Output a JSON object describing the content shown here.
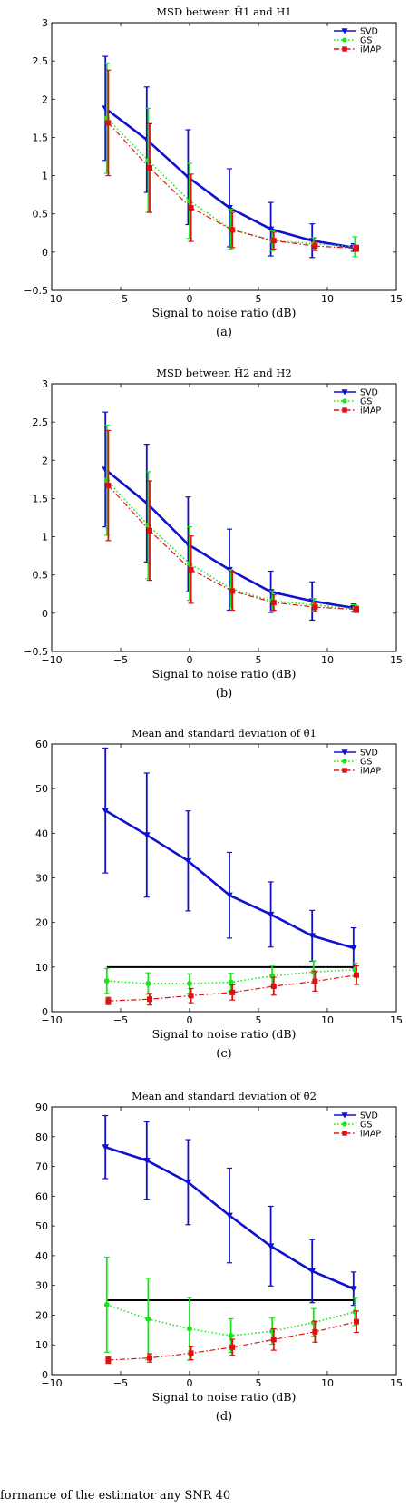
{
  "chart_data": [
    {
      "type": "line",
      "title": "MSD between Ĥ1 and H1",
      "xlabel": "Signal to noise ratio (dB)",
      "ylabel": "",
      "caption": "(a)",
      "xlim": [
        -10,
        15
      ],
      "ylim": [
        -0.5,
        3
      ],
      "xticks": [
        -10,
        -5,
        0,
        5,
        10,
        15
      ],
      "xtick_labels": [
        "−10",
        "−5",
        "0",
        "5",
        "10",
        "15"
      ],
      "yticks": [
        -0.5,
        0,
        0.5,
        1,
        1.5,
        2,
        2.5,
        3
      ],
      "ytick_labels": [
        "−0.5",
        "0",
        "0.5",
        "1",
        "1.5",
        "2",
        "2.5",
        "3"
      ],
      "legend_position": "top-right",
      "x": [
        -6,
        -3,
        0,
        3,
        6,
        9,
        12
      ],
      "series": [
        {
          "name": "SVD",
          "color": "#1010d0",
          "style": "solid",
          "marker": "triangle-down",
          "values": [
            1.88,
            1.47,
            0.98,
            0.58,
            0.3,
            0.15,
            0.06
          ],
          "errors": [
            0.68,
            0.69,
            0.62,
            0.51,
            0.35,
            0.22,
            0.05
          ]
        },
        {
          "name": "GS",
          "color": "#19e619",
          "style": "dotted",
          "marker": "circle",
          "values": [
            1.75,
            1.2,
            0.67,
            0.3,
            0.15,
            0.11,
            0.07
          ],
          "errors": [
            0.72,
            0.68,
            0.49,
            0.26,
            0.13,
            0.08,
            0.13
          ]
        },
        {
          "name": "iMAP",
          "color": "#e01010",
          "style": "dashdot",
          "marker": "square",
          "values": [
            1.69,
            1.1,
            0.58,
            0.29,
            0.15,
            0.08,
            0.05
          ],
          "errors": [
            0.69,
            0.58,
            0.44,
            0.23,
            0.11,
            0.06,
            0.04
          ]
        }
      ]
    },
    {
      "type": "line",
      "title": "MSD between Ĥ2 and H2",
      "xlabel": "Signal to noise ratio (dB)",
      "ylabel": "",
      "caption": "(b)",
      "xlim": [
        -10,
        15
      ],
      "ylim": [
        -0.5,
        3
      ],
      "xticks": [
        -10,
        -5,
        0,
        5,
        10,
        15
      ],
      "xtick_labels": [
        "−10",
        "−5",
        "0",
        "5",
        "10",
        "15"
      ],
      "yticks": [
        -0.5,
        0,
        0.5,
        1,
        1.5,
        2,
        2.5,
        3
      ],
      "ytick_labels": [
        "−0.5",
        "0",
        "0.5",
        "1",
        "1.5",
        "2",
        "2.5",
        "3"
      ],
      "legend_position": "top-right",
      "x": [
        -6,
        -3,
        0,
        3,
        6,
        9,
        12
      ],
      "series": [
        {
          "name": "SVD",
          "color": "#1010d0",
          "style": "solid",
          "marker": "triangle-down",
          "values": [
            1.88,
            1.44,
            0.9,
            0.57,
            0.28,
            0.16,
            0.07
          ],
          "errors": [
            0.75,
            0.77,
            0.62,
            0.53,
            0.27,
            0.25,
            0.05
          ]
        },
        {
          "name": "GS",
          "color": "#19e619",
          "style": "dotted",
          "marker": "circle",
          "values": [
            1.74,
            1.15,
            0.65,
            0.32,
            0.16,
            0.11,
            0.06
          ],
          "errors": [
            0.72,
            0.7,
            0.48,
            0.25,
            0.13,
            0.08,
            0.05
          ]
        },
        {
          "name": "iMAP",
          "color": "#e01010",
          "style": "dashdot",
          "marker": "square",
          "values": [
            1.67,
            1.08,
            0.57,
            0.29,
            0.14,
            0.08,
            0.05
          ],
          "errors": [
            0.72,
            0.65,
            0.44,
            0.25,
            0.1,
            0.06,
            0.04
          ]
        }
      ]
    },
    {
      "type": "line",
      "title": "Mean and standard deviation of θ̂1",
      "xlabel": "Signal to noise ratio (dB)",
      "ylabel": "",
      "caption": "(c)",
      "xlim": [
        -10,
        15
      ],
      "ylim": [
        0,
        60
      ],
      "xticks": [
        -10,
        -5,
        0,
        5,
        10,
        15
      ],
      "xtick_labels": [
        "−10",
        "−5",
        "0",
        "5",
        "10",
        "15"
      ],
      "yticks": [
        0,
        10,
        20,
        30,
        40,
        50,
        60
      ],
      "ytick_labels": [
        "0",
        "10",
        "20",
        "30",
        "40",
        "50",
        "60"
      ],
      "legend_position": "top-right",
      "reference_line": {
        "y": 10,
        "x_from": -6,
        "x_to": 12,
        "color": "#000000"
      },
      "x": [
        -6,
        -3,
        0,
        3,
        6,
        9,
        12
      ],
      "series": [
        {
          "name": "SVD",
          "color": "#1010d0",
          "style": "solid",
          "marker": "triangle-down",
          "values": [
            45.1,
            39.6,
            33.8,
            26.1,
            21.8,
            17.0,
            14.3
          ],
          "errors": [
            14.0,
            13.9,
            11.2,
            9.6,
            7.3,
            5.7,
            4.5
          ]
        },
        {
          "name": "GS",
          "color": "#19e619",
          "style": "dotted",
          "marker": "circle",
          "values": [
            6.9,
            6.3,
            6.3,
            6.6,
            8.0,
            8.9,
            9.4
          ],
          "errors": [
            2.8,
            2.4,
            2.2,
            2.0,
            2.4,
            2.5,
            1.5
          ]
        },
        {
          "name": "iMAP",
          "color": "#e01010",
          "style": "dashdot",
          "marker": "square",
          "values": [
            2.4,
            2.8,
            3.6,
            4.3,
            5.7,
            6.8,
            8.2
          ],
          "errors": [
            0.8,
            1.3,
            1.6,
            1.7,
            2.0,
            2.2,
            2.1
          ]
        }
      ]
    },
    {
      "type": "line",
      "title": "Mean and standard deviation of θ̂2",
      "xlabel": "Signal to noise ratio (dB)",
      "ylabel": "",
      "caption": "(d)",
      "xlim": [
        -10,
        15
      ],
      "ylim": [
        0,
        90
      ],
      "xticks": [
        -10,
        -5,
        0,
        5,
        10,
        15
      ],
      "xtick_labels": [
        "−10",
        "−5",
        "0",
        "5",
        "10",
        "15"
      ],
      "yticks": [
        0,
        10,
        20,
        30,
        40,
        50,
        60,
        70,
        80,
        90
      ],
      "ytick_labels": [
        "0",
        "10",
        "20",
        "30",
        "40",
        "50",
        "60",
        "70",
        "80",
        "90"
      ],
      "legend_position": "top-right",
      "reference_line": {
        "y": 25,
        "x_from": -6,
        "x_to": 12,
        "color": "#000000"
      },
      "x": [
        -6,
        -3,
        0,
        3,
        6,
        9,
        12
      ],
      "series": [
        {
          "name": "SVD",
          "color": "#1010d0",
          "style": "solid",
          "marker": "triangle-down",
          "values": [
            76.5,
            72.0,
            64.7,
            53.5,
            43.2,
            34.8,
            28.9
          ],
          "errors": [
            10.6,
            13.0,
            14.3,
            15.9,
            13.4,
            10.6,
            5.6
          ]
        },
        {
          "name": "GS",
          "color": "#19e619",
          "style": "dotted",
          "marker": "circle",
          "values": [
            23.5,
            18.7,
            15.4,
            13.1,
            14.6,
            17.5,
            21.1
          ],
          "errors": [
            16.0,
            13.7,
            10.5,
            5.7,
            4.4,
            4.7,
            4.6
          ]
        },
        {
          "name": "iMAP",
          "color": "#e01010",
          "style": "dashdot",
          "marker": "square",
          "values": [
            4.9,
            5.6,
            7.2,
            9.2,
            11.8,
            14.4,
            17.8
          ],
          "errors": [
            1.1,
            1.4,
            2.2,
            2.7,
            3.6,
            3.5,
            3.6
          ]
        }
      ]
    }
  ],
  "footer": {
    "text": "formance of the estimator    any SNR         40"
  }
}
